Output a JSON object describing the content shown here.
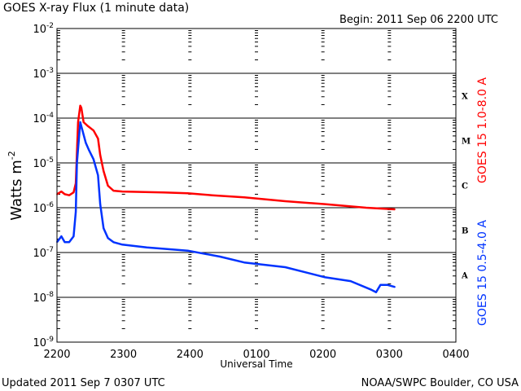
{
  "chart_data": {
    "type": "line",
    "title": "GOES X-ray Flux (1 minute data)",
    "subtitle": "Begin: 2011 Sep 06 2200 UTC",
    "xlabel": "Universal Time",
    "ylabel": "Watts m",
    "ylabel_exponent": "-2",
    "yscale": "log",
    "ylim": [
      1e-09,
      0.01
    ],
    "ytick_labels": [
      {
        "base": "10",
        "exp": "-9"
      },
      {
        "base": "10",
        "exp": "-8"
      },
      {
        "base": "10",
        "exp": "-7"
      },
      {
        "base": "10",
        "exp": "-6"
      },
      {
        "base": "10",
        "exp": "-5"
      },
      {
        "base": "10",
        "exp": "-4"
      },
      {
        "base": "10",
        "exp": "-3"
      },
      {
        "base": "10",
        "exp": "-2"
      }
    ],
    "xlim": [
      "22:00",
      "04:00"
    ],
    "xtick_labels": [
      "2200",
      "2300",
      "2400",
      "0100",
      "0200",
      "0300",
      "0400"
    ],
    "grid": "horizontal lines at each decade",
    "flare_classes": [
      "A",
      "B",
      "C",
      "M",
      "X"
    ],
    "series": [
      {
        "name": "GOES 15 1.0-8.0 A",
        "color": "#ff0000",
        "points": [
          [
            "22:00",
            2e-06
          ],
          [
            "22:04",
            2.3e-06
          ],
          [
            "22:07",
            2e-06
          ],
          [
            "22:11",
            1.9e-06
          ],
          [
            "22:15",
            2.2e-06
          ],
          [
            "22:17",
            3.5e-06
          ],
          [
            "22:19",
            8.1e-05
          ],
          [
            "22:21",
            0.00019
          ],
          [
            "22:22",
            0.00017
          ],
          [
            "22:24",
            8.1e-05
          ],
          [
            "22:28",
            6.6e-05
          ],
          [
            "22:33",
            5.3e-05
          ],
          [
            "22:37",
            3.5e-05
          ],
          [
            "22:39",
            1.5e-05
          ],
          [
            "22:42",
            6.6e-06
          ],
          [
            "22:46",
            3.1e-06
          ],
          [
            "22:51",
            2.4e-06
          ],
          [
            "22:59",
            2.3e-06
          ],
          [
            "23:36",
            2.2e-06
          ],
          [
            "23:58",
            2.1e-06
          ],
          [
            "00:20",
            1.9e-06
          ],
          [
            "00:49",
            1.7e-06
          ],
          [
            "01:26",
            1.4e-06
          ],
          [
            "02:02",
            1.2e-06
          ],
          [
            "02:39",
            1e-06
          ],
          [
            "03:05",
            9.2e-07
          ]
        ]
      },
      {
        "name": "GOES 15 0.5-4.0 A",
        "color": "#0033ff",
        "points": [
          [
            "22:00",
            1.7e-07
          ],
          [
            "22:04",
            2.3e-07
          ],
          [
            "22:07",
            1.7e-07
          ],
          [
            "22:11",
            1.7e-07
          ],
          [
            "22:15",
            2.3e-07
          ],
          [
            "22:17",
            8.1e-07
          ],
          [
            "22:18",
            1e-05
          ],
          [
            "22:21",
            8.1e-05
          ],
          [
            "22:22",
            6.6e-05
          ],
          [
            "22:26",
            2.8e-05
          ],
          [
            "22:29",
            1.9e-05
          ],
          [
            "22:33",
            1.2e-05
          ],
          [
            "22:37",
            5.3e-06
          ],
          [
            "22:39",
            1.2e-06
          ],
          [
            "22:42",
            3.5e-07
          ],
          [
            "22:46",
            2.1e-07
          ],
          [
            "22:51",
            1.7e-07
          ],
          [
            "22:59",
            1.5e-07
          ],
          [
            "23:21",
            1.3e-07
          ],
          [
            "23:58",
            1.1e-07
          ],
          [
            "00:27",
            8.1e-08
          ],
          [
            "00:49",
            6e-08
          ],
          [
            "01:26",
            4.7e-08
          ],
          [
            "02:02",
            2.8e-08
          ],
          [
            "02:25",
            2.3e-08
          ],
          [
            "02:43",
            1.5e-08
          ],
          [
            "02:48",
            1.3e-08
          ],
          [
            "02:52",
            1.9e-08
          ],
          [
            "02:58",
            1.9e-08
          ],
          [
            "03:05",
            1.7e-08
          ]
        ]
      }
    ]
  },
  "footer": {
    "updated": "Updated 2011 Sep  7 0307 UTC",
    "source": "NOAA/SWPC Boulder, CO USA"
  }
}
